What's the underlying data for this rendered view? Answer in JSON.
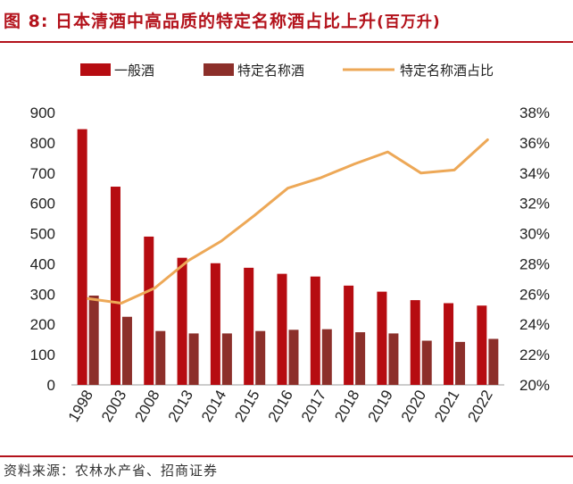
{
  "header": {
    "title": "图 8: 日本清酒中高品质的特定名称酒占比上升",
    "unit": "(百万升)"
  },
  "footer": {
    "source": "资料来源：农林水产省、招商证券"
  },
  "colors": {
    "series_general": "#b60c11",
    "series_special": "#8c2f2a",
    "series_share": "#eda857",
    "accent": "#b3121b"
  },
  "chart_data": {
    "type": "bar",
    "categories": [
      "1998",
      "2003",
      "2008",
      "2013",
      "2014",
      "2015",
      "2016",
      "2017",
      "2018",
      "2019",
      "2020",
      "2021",
      "2022"
    ],
    "series": [
      {
        "name": "一般酒",
        "type": "bar",
        "axis": "left",
        "values": [
          845,
          655,
          490,
          420,
          402,
          387,
          367,
          358,
          328,
          308,
          280,
          270,
          262
        ]
      },
      {
        "name": "特定名称酒",
        "type": "bar",
        "axis": "left",
        "values": [
          295,
          225,
          178,
          170,
          170,
          178,
          182,
          184,
          174,
          170,
          146,
          142,
          152
        ]
      },
      {
        "name": "特定名称酒占比",
        "type": "line",
        "axis": "right",
        "values": [
          25.7,
          25.4,
          26.4,
          28.2,
          29.5,
          31.2,
          33.0,
          33.7,
          34.6,
          35.4,
          34.0,
          34.2,
          36.2
        ]
      }
    ],
    "y_left": {
      "min": 0,
      "max": 900,
      "step": 100,
      "ticks": [
        "0",
        "100",
        "200",
        "300",
        "400",
        "500",
        "600",
        "700",
        "800",
        "900"
      ]
    },
    "y_right": {
      "min": 20,
      "max": 38,
      "step": 2,
      "ticks": [
        "20%",
        "22%",
        "24%",
        "26%",
        "28%",
        "30%",
        "32%",
        "34%",
        "36%",
        "38%"
      ]
    },
    "legend_position": "top",
    "grid": false
  }
}
